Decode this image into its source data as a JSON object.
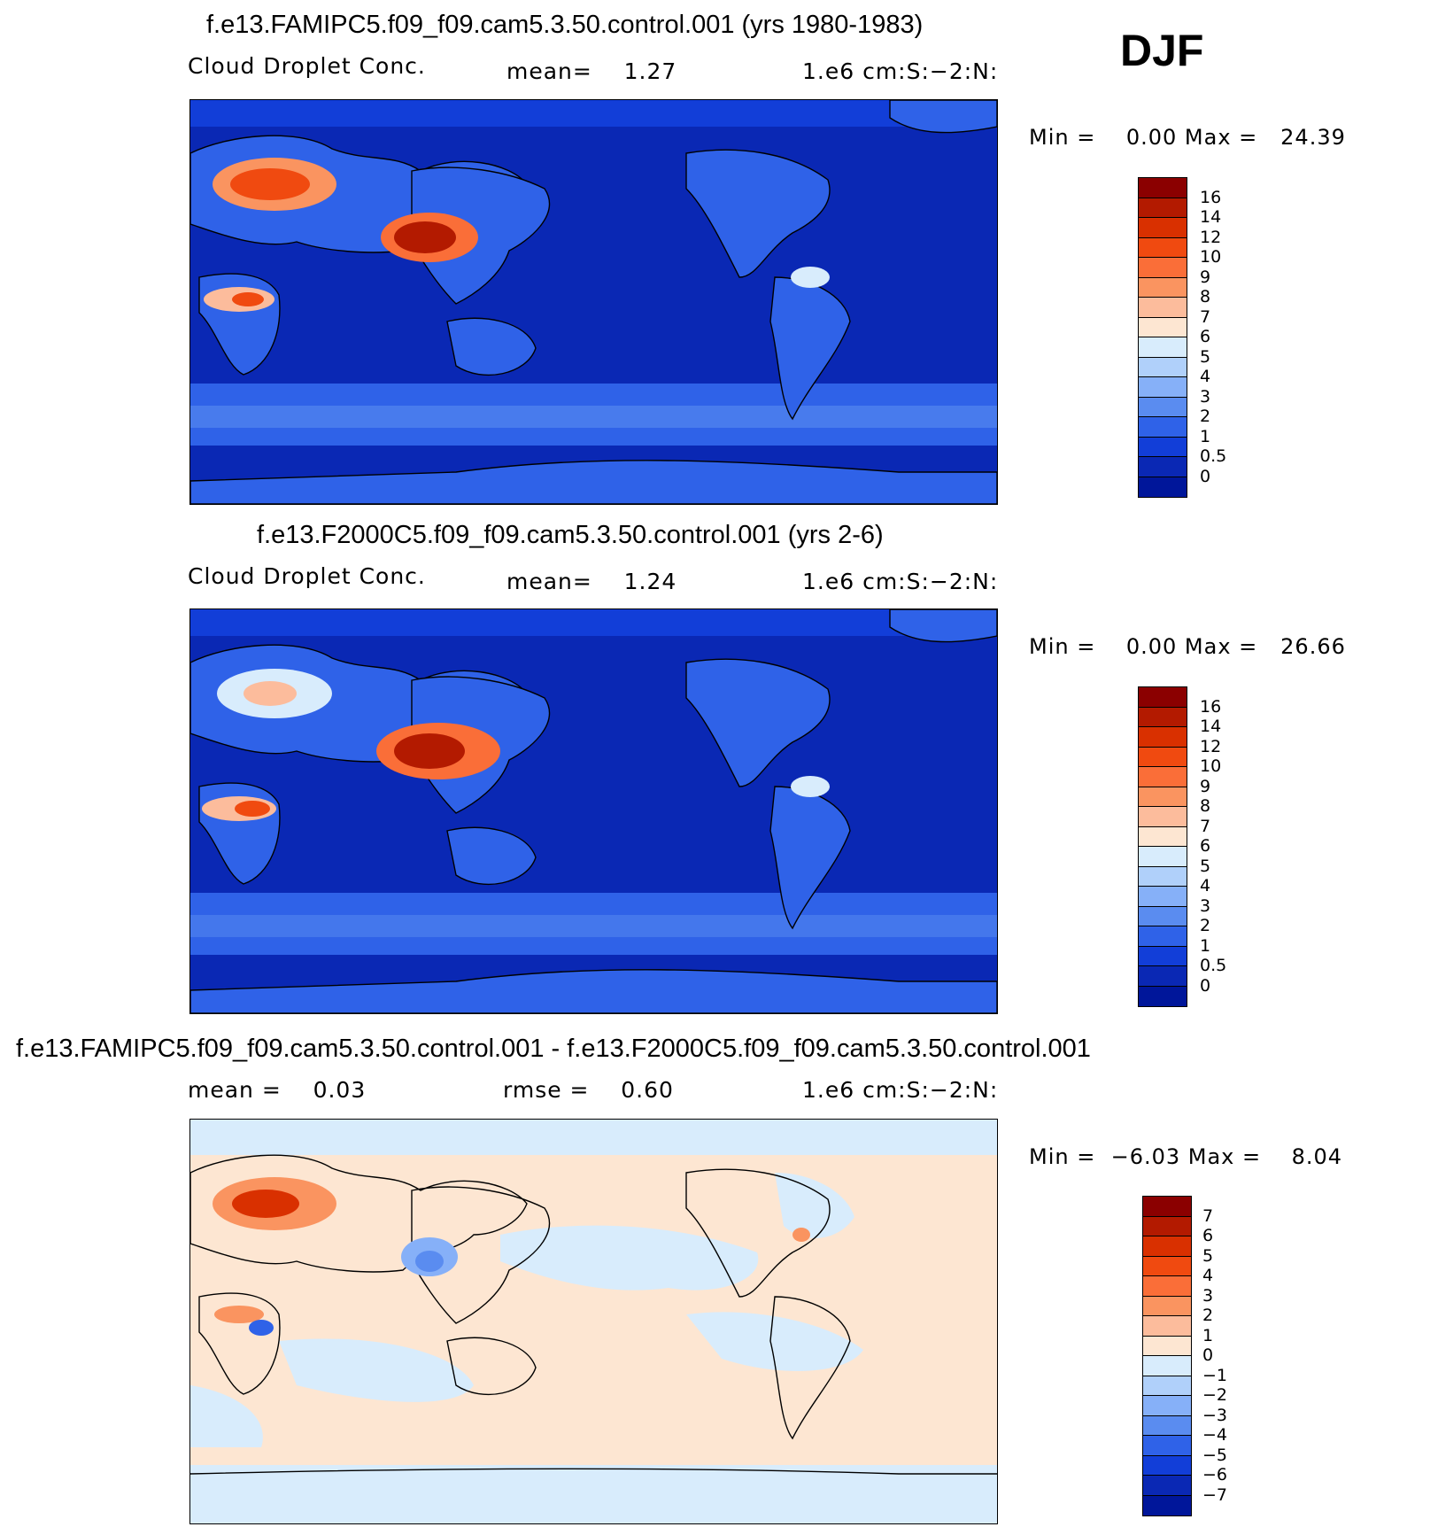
{
  "season": "DJF",
  "panels": [
    {
      "title": "f.e13.FAMIPC5.f09_f09.cam5.3.50.control.001 (yrs 1980-1983)",
      "left_label": "Cloud Droplet Conc.",
      "stat1": "mean=    1.27",
      "units": "1.e6 cm:S:−2:N:",
      "minmax": "Min =    0.00 Max =   24.39",
      "colorbar": {
        "labels": [
          "16",
          "14",
          "12",
          "10",
          "9",
          "8",
          "7",
          "6",
          "5",
          "4",
          "3",
          "2",
          "1",
          "0.5",
          "0"
        ],
        "colors": [
          "#8b0000",
          "#b31a00",
          "#d93000",
          "#f04a10",
          "#fa6e38",
          "#fa9460",
          "#fcbc9c",
          "#fde6d2",
          "#d8ecfc",
          "#b0d0fa",
          "#86b0f8",
          "#5a8cf0",
          "#2f62e8",
          "#123ed8",
          "#0a28b4",
          "#00169a"
        ]
      },
      "background": "#0a28b4",
      "regions": [
        {
          "name": "europe-high",
          "color": "#f04a10"
        },
        {
          "name": "east-asia-high",
          "color": "#b31a00"
        },
        {
          "name": "africa-high",
          "color": "#f04a10"
        }
      ]
    },
    {
      "title": "f.e13.F2000C5.f09_f09.cam5.3.50.control.001 (yrs 2-6)",
      "left_label": "Cloud Droplet Conc.",
      "stat1": "mean=    1.24",
      "units": "1.e6 cm:S:−2:N:",
      "minmax": "Min =    0.00 Max =   26.66",
      "colorbar": {
        "labels": [
          "16",
          "14",
          "12",
          "10",
          "9",
          "8",
          "7",
          "6",
          "5",
          "4",
          "3",
          "2",
          "1",
          "0.5",
          "0"
        ],
        "colors": [
          "#8b0000",
          "#b31a00",
          "#d93000",
          "#f04a10",
          "#fa6e38",
          "#fa9460",
          "#fcbc9c",
          "#fde6d2",
          "#d8ecfc",
          "#b0d0fa",
          "#86b0f8",
          "#5a8cf0",
          "#2f62e8",
          "#123ed8",
          "#0a28b4",
          "#00169a"
        ]
      },
      "background": "#0a28b4",
      "regions": [
        {
          "name": "europe-mid",
          "color": "#fcbc9c"
        },
        {
          "name": "east-asia-high",
          "color": "#b31a00"
        },
        {
          "name": "africa-high",
          "color": "#f04a10"
        }
      ]
    },
    {
      "title": "f.e13.FAMIPC5.f09_f09.cam5.3.50.control.001 - f.e13.F2000C5.f09_f09.cam5.3.50.control.001",
      "left_label": "mean =    0.03",
      "stat1": "rmse =    0.60",
      "units": "1.e6 cm:S:−2:N:",
      "minmax": "Min =  −6.03 Max =    8.04",
      "colorbar": {
        "labels": [
          "7",
          "6",
          "5",
          "4",
          "3",
          "2",
          "1",
          "0",
          "−1",
          "−2",
          "−3",
          "−4",
          "−5",
          "−6",
          "−7"
        ],
        "colors": [
          "#8b0000",
          "#b31a00",
          "#d93000",
          "#f04a10",
          "#fa6e38",
          "#fa9460",
          "#fcbc9c",
          "#fde6d2",
          "#d8ecfc",
          "#b0d0fa",
          "#86b0f8",
          "#5a8cf0",
          "#2f62e8",
          "#123ed8",
          "#0a28b4",
          "#00169a"
        ]
      },
      "background": "#fde6d2",
      "regions": [
        {
          "name": "europe-diff",
          "color": "#d93000"
        },
        {
          "name": "china-diff",
          "color": "#5a8cf0"
        },
        {
          "name": "africa-diff",
          "color": "#2f62e8"
        }
      ]
    }
  ]
}
